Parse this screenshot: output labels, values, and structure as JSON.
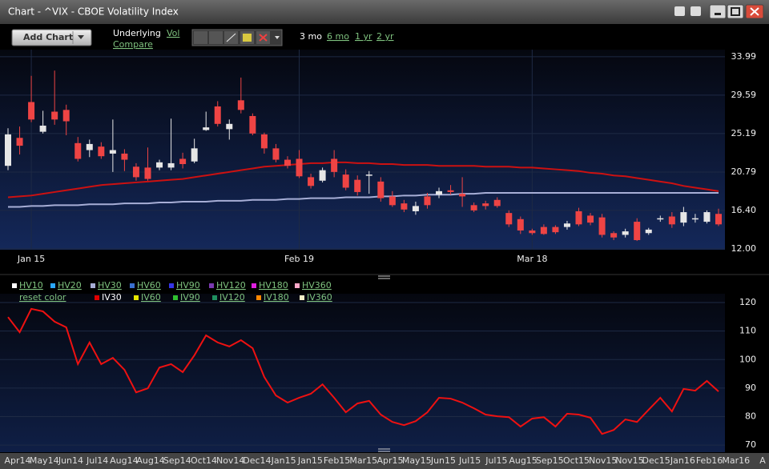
{
  "window": {
    "title": "Chart - ^VIX - CBOE Volatility Index"
  },
  "toolbar": {
    "add_chart": "Add Chart",
    "underlying": "Underlying",
    "vol": "Vol",
    "compare": "Compare",
    "ranges": [
      {
        "label": "3 mo",
        "active": true
      },
      {
        "label": "6 mo",
        "active": false
      },
      {
        "label": "1 yr",
        "active": false
      },
      {
        "label": "2 yr",
        "active": false
      }
    ]
  },
  "chart_data": [
    {
      "type": "candlestick",
      "categories": [
        null,
        null,
        "Jan 15",
        null,
        null,
        null,
        null,
        null,
        null,
        null,
        null,
        null,
        null,
        null,
        null,
        null,
        null,
        null,
        null,
        null,
        null,
        null,
        null,
        null,
        null,
        "Feb 19",
        null,
        null,
        null,
        null,
        null,
        null,
        null,
        null,
        null,
        null,
        null,
        null,
        null,
        null,
        null,
        null,
        null,
        null,
        null,
        "Mar 18",
        null,
        null,
        null,
        null,
        null,
        null,
        null,
        null,
        null,
        null,
        null,
        null,
        null,
        null,
        null,
        null
      ],
      "open": [
        21.5,
        24.7,
        28.8,
        25.4,
        27.7,
        27.9,
        24.1,
        23.3,
        23.7,
        22.9,
        22.9,
        21.4,
        21.3,
        21.3,
        21.3,
        22.3,
        22.0,
        25.6,
        28.3,
        25.7,
        29.0,
        27.2,
        25.1,
        23.5,
        22.2,
        22.3,
        20.2,
        19.8,
        22.3,
        20.5,
        19.9,
        20.4,
        19.7,
        18.0,
        17.2,
        16.3,
        18.0,
        18.2,
        18.7,
        18.3,
        17.0,
        17.2,
        17.6,
        16.1,
        15.4,
        14.1,
        14.5,
        14.5,
        14.5,
        16.3,
        15.8,
        15.6,
        13.8,
        13.6,
        15.1,
        13.8,
        15.4,
        15.7,
        15.0,
        15.4,
        15.1,
        16.0
      ],
      "high": [
        25.8,
        26.0,
        31.8,
        27.8,
        32.4,
        28.5,
        24.8,
        24.5,
        24.2,
        26.8,
        23.4,
        21.8,
        23.6,
        22.2,
        26.9,
        23.0,
        24.6,
        27.7,
        28.9,
        26.8,
        31.6,
        27.5,
        25.3,
        24.0,
        22.6,
        23.3,
        20.6,
        21.3,
        23.3,
        21.1,
        20.4,
        20.9,
        20.2,
        18.6,
        17.6,
        17.4,
        18.4,
        19.0,
        19.3,
        20.2,
        17.3,
        17.5,
        17.9,
        16.4,
        15.7,
        14.3,
        14.8,
        14.7,
        15.2,
        16.7,
        16.1,
        16.0,
        14.0,
        14.3,
        15.5,
        14.4,
        15.8,
        16.2,
        16.8,
        16.0,
        16.4,
        16.6
      ],
      "low": [
        21.0,
        22.8,
        26.5,
        25.2,
        26.2,
        25.0,
        22.0,
        22.5,
        22.3,
        20.8,
        20.9,
        19.8,
        19.8,
        21.0,
        21.0,
        21.2,
        21.8,
        25.5,
        26.0,
        24.5,
        27.5,
        25.0,
        22.9,
        21.9,
        21.2,
        20.1,
        18.9,
        19.6,
        20.2,
        18.7,
        18.1,
        18.3,
        17.4,
        16.8,
        16.2,
        15.9,
        16.6,
        17.8,
        18.2,
        16.8,
        16.2,
        16.5,
        16.7,
        14.5,
        13.7,
        13.6,
        13.6,
        13.7,
        14.2,
        14.6,
        14.7,
        13.3,
        13.0,
        13.3,
        12.9,
        13.6,
        15.1,
        14.4,
        14.6,
        15.0,
        14.9,
        14.6
      ],
      "close": [
        25.1,
        23.8,
        26.8,
        26.1,
        26.8,
        26.6,
        22.3,
        24.0,
        22.6,
        23.3,
        22.2,
        20.2,
        20.0,
        21.9,
        21.8,
        21.7,
        23.5,
        25.9,
        26.3,
        26.3,
        27.9,
        25.2,
        23.5,
        22.2,
        21.5,
        20.3,
        19.2,
        21.0,
        20.8,
        19.0,
        18.5,
        20.5,
        17.8,
        17.0,
        16.5,
        16.9,
        17.0,
        18.6,
        18.5,
        18.0,
        16.4,
        16.9,
        16.9,
        14.8,
        14.1,
        13.8,
        13.7,
        13.9,
        14.9,
        14.8,
        15.0,
        13.6,
        13.3,
        14.0,
        13.0,
        14.2,
        15.5,
        14.8,
        16.2,
        15.5,
        16.2,
        14.8
      ],
      "up_color": "#e6e6e6",
      "down_color": "#ee4444",
      "lines": [
        {
          "color": "#cc1111",
          "values": [
            17.9,
            18.0,
            18.1,
            18.3,
            18.5,
            18.7,
            18.9,
            19.1,
            19.3,
            19.4,
            19.5,
            19.6,
            19.7,
            19.8,
            19.9,
            20.0,
            20.2,
            20.4,
            20.6,
            20.8,
            21.0,
            21.2,
            21.4,
            21.5,
            21.6,
            21.7,
            21.8,
            21.8,
            21.9,
            21.9,
            21.8,
            21.8,
            21.7,
            21.7,
            21.6,
            21.6,
            21.6,
            21.5,
            21.5,
            21.5,
            21.5,
            21.4,
            21.4,
            21.4,
            21.3,
            21.3,
            21.2,
            21.1,
            21.0,
            20.9,
            20.7,
            20.6,
            20.4,
            20.3,
            20.1,
            19.9,
            19.7,
            19.5,
            19.2,
            19.0,
            18.8,
            18.6
          ]
        },
        {
          "color": "#a7aed6",
          "values": [
            16.8,
            16.8,
            16.9,
            16.9,
            17.0,
            17.0,
            17.0,
            17.1,
            17.1,
            17.1,
            17.2,
            17.2,
            17.2,
            17.3,
            17.3,
            17.4,
            17.4,
            17.4,
            17.5,
            17.5,
            17.5,
            17.6,
            17.6,
            17.6,
            17.7,
            17.7,
            17.8,
            17.8,
            17.8,
            17.9,
            17.9,
            17.9,
            18.0,
            18.0,
            18.1,
            18.1,
            18.2,
            18.2,
            18.2,
            18.3,
            18.3,
            18.4,
            18.4,
            18.4,
            18.4,
            18.4,
            18.4,
            18.4,
            18.4,
            18.4,
            18.4,
            18.4,
            18.4,
            18.4,
            18.4,
            18.4,
            18.4,
            18.4,
            18.4,
            18.4,
            18.4,
            18.4
          ]
        }
      ],
      "ylim": [
        11.9,
        34.8
      ],
      "yticks": [
        33.99,
        29.59,
        25.19,
        20.79,
        {
          "value": 16.4,
          "label": "16.40"
        },
        {
          "value": 12,
          "label": "12.00"
        }
      ],
      "grid": true
    },
    {
      "type": "line",
      "color": "#ee1111",
      "values": [
        114.9,
        109.6,
        117.8,
        116.9,
        113.3,
        111.3,
        98.4,
        106.0,
        98.4,
        100.6,
        96.4,
        88.5,
        89.9,
        97.2,
        98.4,
        95.6,
        101.5,
        108.5,
        106.0,
        104.6,
        106.8,
        104.0,
        93.9,
        87.4,
        84.9,
        86.6,
        88.0,
        91.3,
        86.6,
        81.5,
        84.6,
        85.5,
        80.7,
        78.1,
        77.0,
        78.4,
        81.5,
        86.6,
        86.3,
        84.9,
        82.9,
        80.7,
        80.1,
        79.8,
        76.5,
        79.3,
        79.8,
        76.5,
        81.0,
        80.7,
        79.6,
        73.9,
        75.3,
        79.0,
        78.1,
        82.4,
        86.6,
        81.8,
        89.7,
        89.1,
        92.5,
        88.8
      ],
      "x_labels": [
        "Apr14",
        "May14",
        "Jun14",
        "Jul14",
        "Aug14",
        "Aug14",
        "Sep14",
        "Oct14",
        "Nov14",
        "Dec14",
        "Jan15",
        "Jan15",
        "Feb15",
        "Mar15",
        "Apr15",
        "May15",
        "Jun15",
        "Jul15",
        "Jul15",
        "Aug15",
        "Sep15",
        "Oct15",
        "Nov15",
        "Nov15",
        "Dec15",
        "Jan16",
        "Feb16",
        "Mar16",
        "A"
      ],
      "ylim": [
        67.5,
        123.1
      ],
      "yticks": [
        120,
        110,
        100,
        90,
        80,
        70
      ],
      "grid": true,
      "reset_color": "reset color",
      "legend": [
        {
          "label": "HV10",
          "color": "#ffffff",
          "selected": false
        },
        {
          "label": "HV20",
          "color": "#2aa8ff",
          "selected": false
        },
        {
          "label": "HV30",
          "color": "#a7aed6",
          "selected": false
        },
        {
          "label": "HV60",
          "color": "#3a70d0",
          "selected": false
        },
        {
          "label": "HV90",
          "color": "#3535e6",
          "selected": false
        },
        {
          "label": "HV120",
          "color": "#7a3ab0",
          "selected": false
        },
        {
          "label": "HV180",
          "color": "#e020e0",
          "selected": false
        },
        {
          "label": "HV360",
          "color": "#ffa8c8",
          "selected": false
        },
        {
          "label": "IV30",
          "color": "#e00000",
          "selected": true
        },
        {
          "label": "IV60",
          "color": "#e6e600",
          "selected": false
        },
        {
          "label": "IV90",
          "color": "#30c030",
          "selected": false
        },
        {
          "label": "IV120",
          "color": "#209060",
          "selected": false
        },
        {
          "label": "IV180",
          "color": "#ff8800",
          "selected": false
        },
        {
          "label": "IV360",
          "color": "#f4f0c8",
          "selected": false
        }
      ]
    }
  ]
}
